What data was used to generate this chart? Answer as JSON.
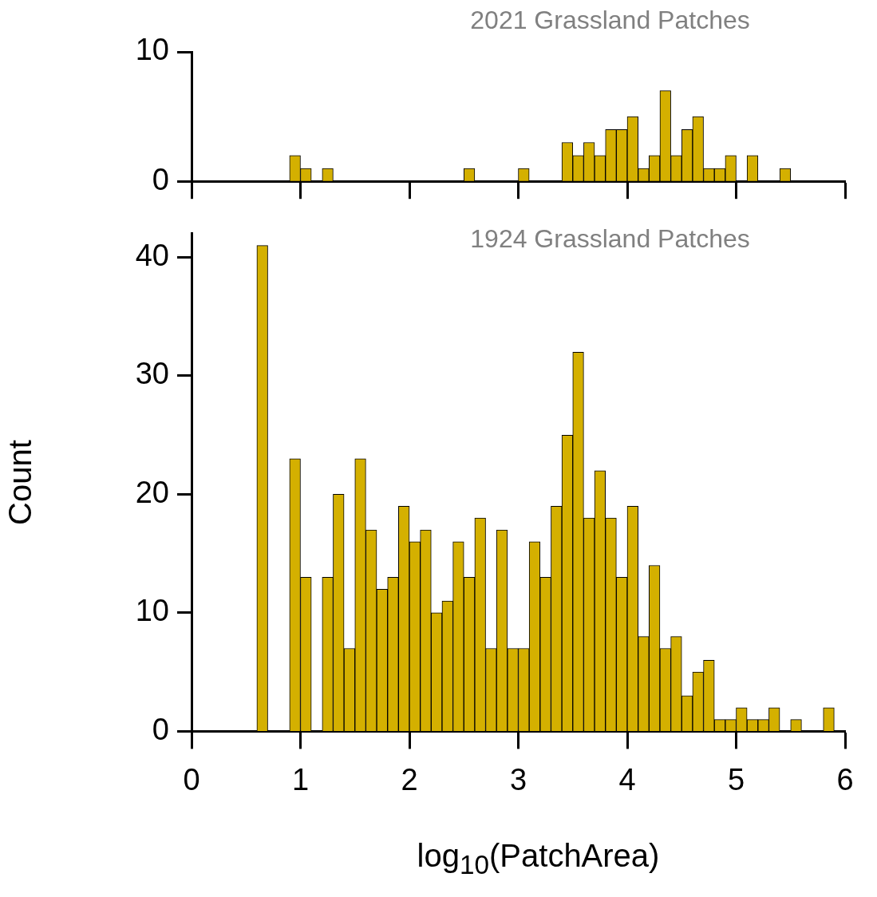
{
  "chart_data": [
    {
      "type": "histogram",
      "title": "2021 Grassland Patches",
      "bins": [
        0.9,
        1.0,
        1.1,
        1.2,
        1.3,
        1.4,
        1.5,
        1.6,
        1.7,
        1.8,
        1.9,
        2.0,
        2.1,
        2.2,
        2.3,
        2.4,
        2.5,
        2.6,
        2.7,
        2.8,
        2.9,
        3.0,
        3.1,
        3.2,
        3.3,
        3.4,
        3.5,
        3.6,
        3.7,
        3.8,
        3.9,
        4.0,
        4.1,
        4.2,
        4.3,
        4.4,
        4.5,
        4.6,
        4.7,
        4.8,
        4.9,
        5.0,
        5.1,
        5.2,
        5.3,
        5.4,
        5.5
      ],
      "values": [
        2,
        1,
        0,
        1,
        0,
        0,
        0,
        0,
        0,
        0,
        0,
        0,
        0,
        0,
        0,
        0,
        1,
        0,
        0,
        0,
        0,
        1,
        0,
        0,
        0,
        3,
        2,
        3,
        2,
        4,
        4,
        5,
        1,
        2,
        7,
        2,
        4,
        5,
        1,
        1,
        2,
        0,
        2,
        0,
        0,
        1
      ],
      "color": "#d4b000",
      "xlim": [
        0,
        6
      ],
      "xticks": [
        0,
        1,
        2,
        3,
        4,
        5,
        6
      ],
      "ylim": [
        0,
        10
      ],
      "yticks": [
        0,
        10
      ],
      "tick_labels": "y",
      "grid": false
    },
    {
      "type": "histogram",
      "title": "1924 Grassland Patches",
      "xlabel": "log$_{10}$(PatchArea)",
      "ylabel": "Count",
      "bins": [
        0.6,
        0.7,
        0.8,
        0.9,
        1.0,
        1.1,
        1.2,
        1.3,
        1.4,
        1.5,
        1.6,
        1.7,
        1.8,
        1.9,
        2.0,
        2.1,
        2.2,
        2.3,
        2.4,
        2.5,
        2.6,
        2.7,
        2.8,
        2.9,
        3.0,
        3.1,
        3.2,
        3.3,
        3.4,
        3.5,
        3.6,
        3.7,
        3.8,
        3.9,
        4.0,
        4.1,
        4.2,
        4.3,
        4.4,
        4.5,
        4.6,
        4.7,
        4.8,
        4.9,
        5.0,
        5.1,
        5.2,
        5.3,
        5.4,
        5.5,
        5.6,
        5.7,
        5.8,
        5.9
      ],
      "values": [
        41,
        0,
        0,
        23,
        13,
        0,
        13,
        20,
        7,
        23,
        17,
        12,
        13,
        19,
        16,
        17,
        10,
        11,
        16,
        13,
        18,
        7,
        17,
        7,
        7,
        16,
        13,
        19,
        25,
        32,
        18,
        22,
        18,
        13,
        19,
        8,
        14,
        7,
        8,
        3,
        5,
        6,
        1,
        1,
        2,
        1,
        1,
        2,
        0,
        1,
        0,
        0,
        2
      ],
      "color": "#d4b000",
      "xlim": [
        0,
        6
      ],
      "xticks": [
        0,
        1,
        2,
        3,
        4,
        5,
        6
      ],
      "ylim": [
        0,
        42
      ],
      "yticks": [
        0,
        10,
        20,
        30,
        40
      ],
      "grid": false
    }
  ]
}
